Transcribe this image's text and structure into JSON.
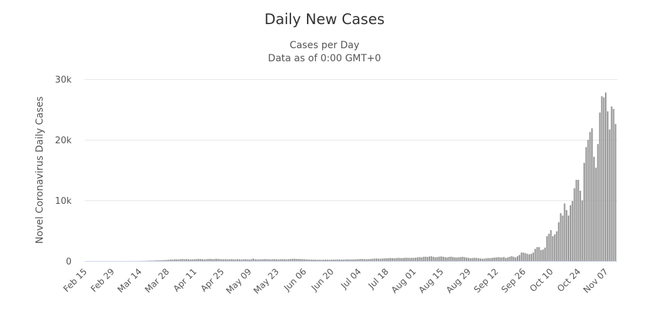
{
  "chart_data": {
    "type": "bar",
    "title": "Daily New Cases",
    "subtitle_lines": [
      "Cases per Day",
      "Data as of 0:00 GMT+0"
    ],
    "xlabel": "",
    "ylabel": "Novel Coronavirus Daily Cases",
    "ylim": [
      0,
      30000
    ],
    "y_ticks": [
      0,
      10000,
      20000,
      30000
    ],
    "y_tick_labels": [
      "0",
      "10k",
      "20k",
      "30k"
    ],
    "grid": true,
    "start_date": "Feb 15",
    "x_tick_labels": [
      "Feb 15",
      "Feb 29",
      "Mar 14",
      "Mar 28",
      "Apr 11",
      "Apr 25",
      "May 09",
      "May 23",
      "Jun 06",
      "Jun 20",
      "Jul 04",
      "Jul 18",
      "Aug 01",
      "Aug 15",
      "Aug 29",
      "Sep 12",
      "Sep 26",
      "Oct 10",
      "Oct 24",
      "Nov 07"
    ],
    "x_tick_interval_days": 14,
    "bar_color": "#999999",
    "values": [
      0,
      0,
      0,
      0,
      0,
      0,
      0,
      0,
      0,
      0,
      0,
      0,
      0,
      0,
      0,
      0,
      0,
      1,
      0,
      2,
      3,
      5,
      4,
      6,
      8,
      10,
      12,
      15,
      20,
      25,
      30,
      40,
      50,
      60,
      70,
      80,
      100,
      110,
      120,
      130,
      150,
      170,
      180,
      220,
      260,
      240,
      300,
      280,
      260,
      310,
      330,
      290,
      320,
      300,
      260,
      280,
      300,
      320,
      350,
      330,
      310,
      280,
      300,
      340,
      360,
      320,
      300,
      380,
      350,
      320,
      300,
      290,
      310,
      280,
      300,
      320,
      290,
      270,
      300,
      280,
      260,
      290,
      310,
      280,
      260,
      280,
      420,
      300,
      280,
      270,
      290,
      300,
      320,
      310,
      290,
      280,
      300,
      310,
      290,
      270,
      300,
      320,
      310,
      280,
      300,
      330,
      360,
      380,
      350,
      340,
      330,
      320,
      300,
      280,
      260,
      240,
      250,
      230,
      220,
      210,
      220,
      200,
      230,
      240,
      220,
      210,
      230,
      250,
      240,
      260,
      250,
      230,
      240,
      260,
      280,
      270,
      250,
      260,
      280,
      300,
      320,
      340,
      330,
      310,
      300,
      320,
      350,
      380,
      400,
      420,
      390,
      380,
      410,
      440,
      450,
      470,
      500,
      480,
      460,
      490,
      520,
      500,
      480,
      520,
      550,
      530,
      510,
      540,
      520,
      560,
      610,
      650,
      600,
      700,
      720,
      680,
      750,
      780,
      700,
      620,
      660,
      720,
      760,
      700,
      640,
      600,
      680,
      720,
      650,
      600,
      580,
      620,
      660,
      700,
      640,
      560,
      520,
      480,
      500,
      540,
      520,
      460,
      420,
      380,
      400,
      450,
      500,
      480,
      520,
      560,
      600,
      640,
      620,
      580,
      660,
      500,
      600,
      700,
      800,
      700,
      600,
      800,
      1000,
      1400,
      1400,
      1300,
      1200,
      1100,
      1200,
      1400,
      2000,
      2300,
      2300,
      1800,
      1900,
      2200,
      4100,
      4500,
      5100,
      4100,
      4400,
      4900,
      6400,
      7900,
      7500,
      9500,
      8400,
      7500,
      9200,
      9900,
      12000,
      13400,
      13400,
      11600,
      10000,
      16200,
      18800,
      20000,
      21300,
      21900,
      17200,
      15400,
      19300,
      24500,
      27200,
      27000,
      27800,
      24700,
      21700,
      25500,
      25100,
      22600
    ]
  }
}
